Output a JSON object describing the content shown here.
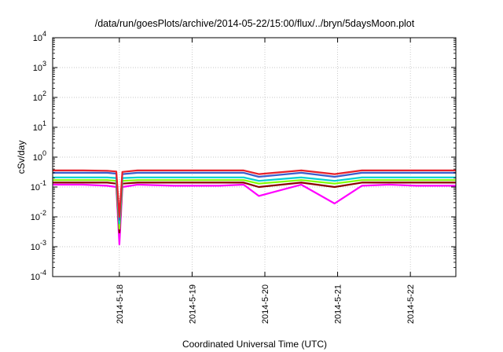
{
  "chart_data": {
    "type": "line",
    "title": "/data/run/goesPlots/archive/2014-05-22/15:00/flux/../bryn/5daysMoon.plot",
    "xlabel": "Coordinated Universal Time (UTC)",
    "ylabel": "cSv/day",
    "y_scale": "log",
    "ylim": [
      0.0001,
      10000
    ],
    "y_ticks": [
      {
        "value": 0.0001,
        "base": "10",
        "exp": "-4"
      },
      {
        "value": 0.001,
        "base": "10",
        "exp": "-3"
      },
      {
        "value": 0.01,
        "base": "10",
        "exp": "-2"
      },
      {
        "value": 0.1,
        "base": "10",
        "exp": "-1"
      },
      {
        "value": 1,
        "base": "10",
        "exp": "0"
      },
      {
        "value": 10,
        "base": "10",
        "exp": "1"
      },
      {
        "value": 100,
        "base": "10",
        "exp": "2"
      },
      {
        "value": 1000,
        "base": "10",
        "exp": "3"
      },
      {
        "value": 10000,
        "base": "10",
        "exp": "4"
      }
    ],
    "xlim": [
      "2014-05-17 02:00",
      "2014-05-22 15:00"
    ],
    "x_ticks": [
      {
        "value": "2014-05-18 00:00",
        "label": "2014-5-18"
      },
      {
        "value": "2014-05-19 00:00",
        "label": "2014-5-19"
      },
      {
        "value": "2014-05-20 00:00",
        "label": "2014-5-20"
      },
      {
        "value": "2014-05-21 00:00",
        "label": "2014-5-21"
      },
      {
        "value": "2014-05-22 00:00",
        "label": "2014-5-22"
      }
    ],
    "grid": true,
    "legend": "none",
    "series": [
      {
        "color": "#ff00ff",
        "x": [
          "2014-05-17 02:00",
          "2014-05-17 12:00",
          "2014-05-17 20:00",
          "2014-05-17 23:00",
          "2014-05-18 00:00",
          "2014-05-18 01:00",
          "2014-05-18 06:00",
          "2014-05-18 18:00",
          "2014-05-19 09:00",
          "2014-05-19 17:00",
          "2014-05-19 22:00",
          "2014-05-20 12:00",
          "2014-05-20 23:00",
          "2014-05-21 08:00",
          "2014-05-21 17:00",
          "2014-05-22 02:00",
          "2014-05-22 15:00"
        ],
        "values": [
          0.12,
          0.12,
          0.11,
          0.1,
          0.0012,
          0.1,
          0.12,
          0.11,
          0.11,
          0.12,
          0.05,
          0.12,
          0.028,
          0.11,
          0.12,
          0.11,
          0.11
        ]
      },
      {
        "color": "#8b0000",
        "x": [
          "2014-05-17 02:00",
          "2014-05-17 12:00",
          "2014-05-17 20:00",
          "2014-05-17 23:00",
          "2014-05-18 00:00",
          "2014-05-18 01:00",
          "2014-05-18 06:00",
          "2014-05-18 18:00",
          "2014-05-19 09:00",
          "2014-05-19 17:00",
          "2014-05-19 22:00",
          "2014-05-20 12:00",
          "2014-05-20 23:00",
          "2014-05-21 08:00",
          "2014-05-21 17:00",
          "2014-05-22 02:00",
          "2014-05-22 15:00"
        ],
        "values": [
          0.14,
          0.14,
          0.14,
          0.13,
          0.003,
          0.13,
          0.14,
          0.14,
          0.14,
          0.14,
          0.1,
          0.14,
          0.1,
          0.14,
          0.14,
          0.14,
          0.14
        ]
      },
      {
        "color": "#7fff00",
        "x": [
          "2014-05-17 02:00",
          "2014-05-17 12:00",
          "2014-05-17 20:00",
          "2014-05-17 23:00",
          "2014-05-18 00:00",
          "2014-05-18 01:00",
          "2014-05-18 06:00",
          "2014-05-18 18:00",
          "2014-05-19 09:00",
          "2014-05-19 17:00",
          "2014-05-19 22:00",
          "2014-05-20 12:00",
          "2014-05-20 23:00",
          "2014-05-21 08:00",
          "2014-05-21 17:00",
          "2014-05-22 02:00",
          "2014-05-22 15:00"
        ],
        "values": [
          0.17,
          0.17,
          0.17,
          0.16,
          0.004,
          0.16,
          0.17,
          0.17,
          0.17,
          0.17,
          0.13,
          0.17,
          0.13,
          0.17,
          0.17,
          0.17,
          0.17
        ]
      },
      {
        "color": "#00ced1",
        "x": [
          "2014-05-17 02:00",
          "2014-05-17 12:00",
          "2014-05-17 20:00",
          "2014-05-17 23:00",
          "2014-05-18 00:00",
          "2014-05-18 01:00",
          "2014-05-18 06:00",
          "2014-05-18 18:00",
          "2014-05-19 09:00",
          "2014-05-19 17:00",
          "2014-05-19 22:00",
          "2014-05-20 12:00",
          "2014-05-20 23:00",
          "2014-05-21 08:00",
          "2014-05-21 17:00",
          "2014-05-22 02:00",
          "2014-05-22 15:00"
        ],
        "values": [
          0.21,
          0.21,
          0.21,
          0.2,
          0.006,
          0.2,
          0.21,
          0.21,
          0.21,
          0.21,
          0.16,
          0.21,
          0.16,
          0.21,
          0.21,
          0.21,
          0.21
        ]
      },
      {
        "color": "#3a5fcd",
        "x": [
          "2014-05-17 02:00",
          "2014-05-17 12:00",
          "2014-05-17 20:00",
          "2014-05-17 23:00",
          "2014-05-18 00:00",
          "2014-05-18 01:00",
          "2014-05-18 06:00",
          "2014-05-18 18:00",
          "2014-05-19 09:00",
          "2014-05-19 17:00",
          "2014-05-19 22:00",
          "2014-05-20 12:00",
          "2014-05-20 23:00",
          "2014-05-21 08:00",
          "2014-05-21 17:00",
          "2014-05-22 02:00",
          "2014-05-22 15:00"
        ],
        "values": [
          0.3,
          0.3,
          0.3,
          0.28,
          0.008,
          0.27,
          0.3,
          0.3,
          0.3,
          0.3,
          0.22,
          0.3,
          0.22,
          0.3,
          0.3,
          0.3,
          0.3
        ]
      },
      {
        "color": "#e8202a",
        "x": [
          "2014-05-17 02:00",
          "2014-05-17 12:00",
          "2014-05-17 20:00",
          "2014-05-17 23:00",
          "2014-05-18 00:00",
          "2014-05-18 01:00",
          "2014-05-18 06:00",
          "2014-05-18 18:00",
          "2014-05-19 09:00",
          "2014-05-19 17:00",
          "2014-05-19 22:00",
          "2014-05-20 12:00",
          "2014-05-20 23:00",
          "2014-05-21 08:00",
          "2014-05-21 17:00",
          "2014-05-22 02:00",
          "2014-05-22 15:00"
        ],
        "values": [
          0.36,
          0.36,
          0.35,
          0.33,
          0.01,
          0.32,
          0.36,
          0.36,
          0.36,
          0.36,
          0.27,
          0.36,
          0.27,
          0.36,
          0.36,
          0.36,
          0.36
        ]
      }
    ]
  }
}
